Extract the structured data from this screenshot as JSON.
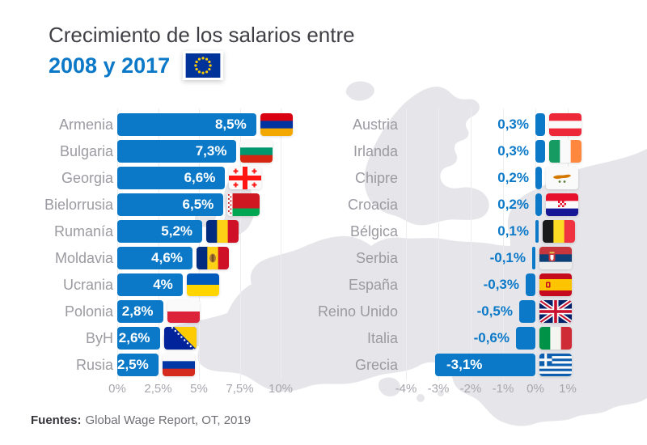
{
  "title": {
    "line1": "Crecimiento de los salarios entre",
    "line2": "2008 y 2017"
  },
  "footer": {
    "label": "Fuentes:",
    "text": "Global Wage Report, OT, 2019"
  },
  "colors": {
    "bar_blue": "#0b79c8",
    "accent_blue": "#0b79c8",
    "label_gray": "#9a9aa1",
    "axis_gray": "#a6a6ad",
    "map_gray": "#e6e6ea",
    "title_dark": "#3f3f46"
  },
  "icons": {
    "eu_flag": "eu-flag-icon"
  },
  "chart_data": [
    {
      "type": "bar",
      "orientation": "horizontal",
      "panel": "positive-growth",
      "unit": "%",
      "categories": [
        "Armenia",
        "Bulgaria",
        "Georgia",
        "Bielorrusia",
        "Rumanía",
        "Moldavia",
        "Ucrania",
        "Polonia",
        "ByH",
        "Rusia"
      ],
      "values": [
        8.5,
        7.3,
        6.6,
        6.5,
        5.2,
        4.6,
        4,
        2.8,
        2.6,
        2.5
      ],
      "value_labels": [
        "8,5%",
        "7,3%",
        "6,6%",
        "6,5%",
        "5,2%",
        "4,6%",
        "4%",
        "2,8%",
        "2,6%",
        "2,5%"
      ],
      "flags": [
        "armenia",
        "bulgaria",
        "georgia",
        "belarus",
        "romania",
        "moldova",
        "ukraine",
        "poland",
        "bosnia",
        "russia"
      ],
      "x_ticks": [
        {
          "label": "0%",
          "value": 0
        },
        {
          "label": "2,5%",
          "value": 2.5
        },
        {
          "label": "5%",
          "value": 5
        },
        {
          "label": "7,5%",
          "value": 7.5
        },
        {
          "label": "10%",
          "value": 10
        }
      ],
      "xlim": [
        0,
        10
      ],
      "grid": true,
      "legend": false
    },
    {
      "type": "bar",
      "orientation": "horizontal",
      "panel": "low-negative-growth",
      "unit": "%",
      "categories": [
        "Austria",
        "Irlanda",
        "Chipre",
        "Croacia",
        "Bélgica",
        "Serbia",
        "España",
        "Reino Unido",
        "Italia",
        "Grecia"
      ],
      "values": [
        0.3,
        0.3,
        0.2,
        0.2,
        0.1,
        -0.1,
        -0.3,
        -0.5,
        -0.6,
        -3.1
      ],
      "value_labels": [
        "0,3%",
        "0,3%",
        "0,2%",
        "0,2%",
        "0,1%",
        "-0,1%",
        "-0,3%",
        "-0,5%",
        "-0,6%",
        "-3,1%"
      ],
      "flags": [
        "austria",
        "ireland",
        "cyprus",
        "croatia",
        "belgium",
        "serbia",
        "spain",
        "uk",
        "italy",
        "greece"
      ],
      "x_ticks": [
        {
          "label": "-4%",
          "value": -4
        },
        {
          "label": "-3%",
          "value": -3
        },
        {
          "label": "-2%",
          "value": -2
        },
        {
          "label": "-1%",
          "value": -1
        },
        {
          "label": "0%",
          "value": 0
        },
        {
          "label": "1%",
          "value": 1
        }
      ],
      "xlim": [
        -4,
        1
      ],
      "grid": true,
      "legend": false
    }
  ]
}
